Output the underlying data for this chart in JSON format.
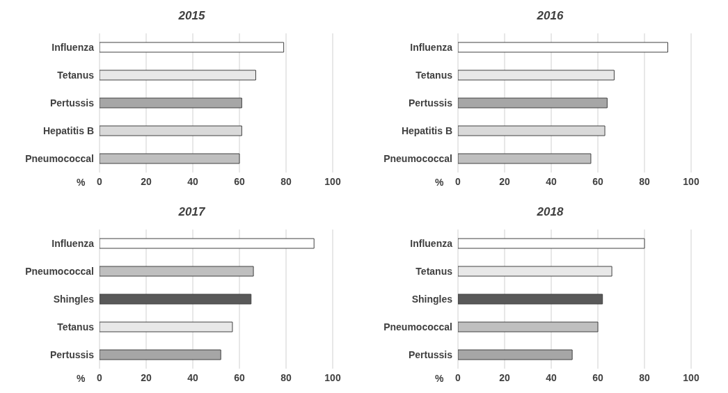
{
  "chart_data": [
    {
      "type": "bar",
      "orientation": "horizontal",
      "title": "2015",
      "xlabel": "%",
      "categories": [
        "Influenza",
        "Tetanus",
        "Pertussis",
        "Hepatitis B",
        "Pneumococcal"
      ],
      "values": [
        79,
        67,
        61,
        61,
        60
      ],
      "colors": [
        "#ffffff",
        "#e8e8e8",
        "#a6a6a6",
        "#d9d9d9",
        "#bfbfbf"
      ],
      "xlim": [
        0,
        100
      ],
      "xticks": [
        0,
        20,
        40,
        60,
        80,
        100
      ],
      "grid": "x"
    },
    {
      "type": "bar",
      "orientation": "horizontal",
      "title": "2016",
      "xlabel": "%",
      "categories": [
        "Influenza",
        "Tetanus",
        "Pertussis",
        "Hepatitis B",
        "Pneumococcal"
      ],
      "values": [
        90,
        67,
        64,
        63,
        57
      ],
      "colors": [
        "#ffffff",
        "#e8e8e8",
        "#a6a6a6",
        "#d9d9d9",
        "#bfbfbf"
      ],
      "xlim": [
        0,
        100
      ],
      "xticks": [
        0,
        20,
        40,
        60,
        80,
        100
      ],
      "grid": "x"
    },
    {
      "type": "bar",
      "orientation": "horizontal",
      "title": "2017",
      "xlabel": "%",
      "categories": [
        "Influenza",
        "Pneumococcal",
        "Shingles",
        "Tetanus",
        "Pertussis"
      ],
      "values": [
        92,
        66,
        65,
        57,
        52
      ],
      "colors": [
        "#ffffff",
        "#bfbfbf",
        "#595959",
        "#e8e8e8",
        "#a6a6a6"
      ],
      "xlim": [
        0,
        100
      ],
      "xticks": [
        0,
        20,
        40,
        60,
        80,
        100
      ],
      "grid": "x"
    },
    {
      "type": "bar",
      "orientation": "horizontal",
      "title": "2018",
      "xlabel": "%",
      "categories": [
        "Influenza",
        "Tetanus",
        "Shingles",
        "Pneumococcal",
        "Pertussis"
      ],
      "values": [
        80,
        66,
        62,
        60,
        49
      ],
      "colors": [
        "#ffffff",
        "#e8e8e8",
        "#595959",
        "#bfbfbf",
        "#a6a6a6"
      ],
      "xlim": [
        0,
        100
      ],
      "xticks": [
        0,
        20,
        40,
        60,
        80,
        100
      ],
      "grid": "x"
    }
  ]
}
